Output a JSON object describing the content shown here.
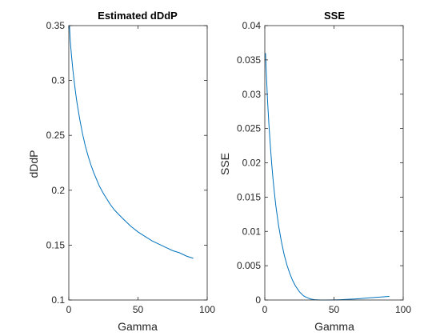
{
  "colors": {
    "line": "#0072BD",
    "axis": "#262626",
    "background": "#ffffff"
  },
  "chart_data": [
    {
      "type": "line",
      "title": "Estimated dDdP",
      "xlabel": "Gamma",
      "ylabel": "dDdP",
      "xlim": [
        0,
        100
      ],
      "ylim": [
        0.1,
        0.35
      ],
      "xticks": [
        0,
        50,
        100
      ],
      "xtick_labels": [
        "0",
        "50",
        "100"
      ],
      "yticks": [
        0.1,
        0.15,
        0.2,
        0.25,
        0.3,
        0.35
      ],
      "ytick_labels": [
        "0.1",
        "0.15",
        "0.2",
        "0.25",
        "0.3",
        "0.35"
      ],
      "grid": false,
      "series": [
        {
          "x": [
            0.5,
            1,
            2,
            3,
            4,
            5,
            6,
            8,
            10,
            12,
            14,
            16,
            18,
            20,
            22,
            25,
            28,
            30,
            33,
            36,
            40,
            45,
            50,
            55,
            60,
            65,
            70,
            75,
            80,
            85,
            90
          ],
          "y": [
            0.35,
            0.337,
            0.322,
            0.309,
            0.298,
            0.288,
            0.279,
            0.264,
            0.251,
            0.24,
            0.231,
            0.223,
            0.216,
            0.21,
            0.204,
            0.197,
            0.191,
            0.187,
            0.182,
            0.178,
            0.173,
            0.167,
            0.162,
            0.158,
            0.154,
            0.151,
            0.148,
            0.145,
            0.143,
            0.14,
            0.138
          ]
        }
      ]
    },
    {
      "type": "line",
      "title": "SSE",
      "xlabel": "Gamma",
      "ylabel": "SSE",
      "xlim": [
        0,
        100
      ],
      "ylim": [
        0,
        0.04
      ],
      "xticks": [
        0,
        50,
        100
      ],
      "xtick_labels": [
        "0",
        "50",
        "100"
      ],
      "yticks": [
        0,
        0.005,
        0.01,
        0.015,
        0.02,
        0.025,
        0.03,
        0.035,
        0.04
      ],
      "ytick_labels": [
        "0",
        "0.005",
        "0.01",
        "0.015",
        "0.02",
        "0.025",
        "0.03",
        "0.035",
        "0.04"
      ],
      "grid": false,
      "series": [
        {
          "x": [
            0.5,
            1,
            2,
            3,
            4,
            5,
            6,
            7,
            8,
            10,
            12,
            14,
            16,
            18,
            20,
            22,
            25,
            28,
            30,
            33,
            36,
            40,
            45,
            50,
            55,
            60,
            65,
            70,
            75,
            80,
            85,
            90
          ],
          "y": [
            0.036,
            0.0335,
            0.029,
            0.0255,
            0.0225,
            0.0198,
            0.0175,
            0.0155,
            0.0137,
            0.0108,
            0.0085,
            0.0066,
            0.0051,
            0.0039,
            0.0029,
            0.0021,
            0.0012,
            0.0006,
            0.0004,
            0.00015,
            5e-05,
            0.0,
            0.0,
            2e-05,
            5e-05,
            0.0001,
            0.00015,
            0.00022,
            0.0003,
            0.00038,
            0.00045,
            0.00052
          ]
        }
      ]
    }
  ]
}
